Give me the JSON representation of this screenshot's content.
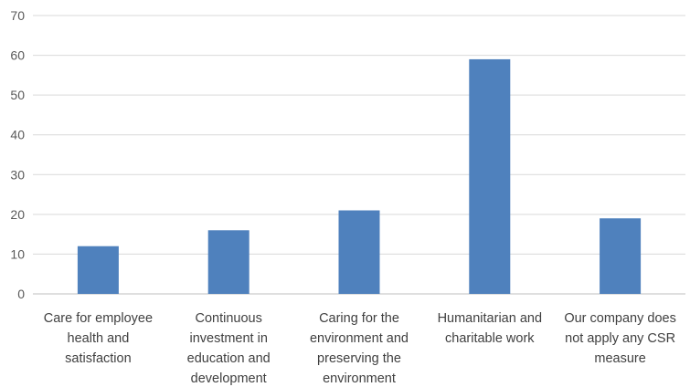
{
  "chart_data": {
    "type": "bar",
    "title": "",
    "xlabel": "",
    "ylabel": "",
    "categories": [
      [
        "Care for employee",
        "health and",
        "satisfaction"
      ],
      [
        "Continuous",
        "investment in",
        "education and",
        "development"
      ],
      [
        "Caring for the",
        "environment and",
        "preserving the",
        "environment"
      ],
      [
        "Humanitarian and",
        "charitable work"
      ],
      [
        "Our company does",
        "not apply any CSR",
        "measure"
      ]
    ],
    "values": [
      12,
      16,
      21,
      59,
      19
    ],
    "ylim": [
      0,
      70
    ],
    "yticks": [
      0,
      10,
      20,
      30,
      40,
      50,
      60,
      70
    ],
    "grid": true,
    "legend": "none",
    "bar_color": "#4f81bd",
    "grid_color": "#d9d9d9",
    "text_color": "#404040"
  }
}
